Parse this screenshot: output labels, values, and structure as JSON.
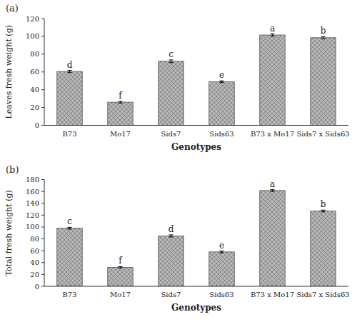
{
  "chart_data": [
    {
      "type": "bar",
      "title": "(a)",
      "categories": [
        "B73",
        "Mo17",
        "Sids7",
        "Sids63",
        "B73 x Mo17",
        "Sids7 x Sids63"
      ],
      "values": [
        60.5,
        26.0,
        72.0,
        49.0,
        101.5,
        98.5
      ],
      "errors": [
        1.2,
        1.0,
        1.5,
        1.0,
        1.2,
        1.2
      ],
      "letters": [
        "d",
        "f",
        "c",
        "e",
        "a",
        "b"
      ],
      "y_label": "Leaves fresh weight (g)",
      "x_label": "Genotypes",
      "color": "#b8b8b8",
      "ylim": [
        0,
        120
      ],
      "yticks": [
        0,
        20,
        40,
        60,
        80,
        100,
        120
      ],
      "grid": false
    },
    {
      "type": "bar",
      "title": "(b)",
      "categories": [
        "B73",
        "Mo17",
        "Sids7",
        "Sids63",
        "B73 x Mo17",
        "Sids7 x Sids63"
      ],
      "values": [
        98.0,
        32.0,
        85.0,
        58.0,
        161.5,
        127.0
      ],
      "errors": [
        1.5,
        1.2,
        1.8,
        1.5,
        1.5,
        1.5
      ],
      "letters": [
        "c",
        "f",
        "d",
        "e",
        "a",
        "b"
      ],
      "y_label": "Total fresh weight (g)",
      "x_label": "Genotypes",
      "color": "#b8b8b8",
      "ylim": [
        0,
        180
      ],
      "yticks": [
        0,
        20,
        40,
        60,
        80,
        100,
        120,
        140,
        160,
        180
      ],
      "grid": false
    }
  ]
}
